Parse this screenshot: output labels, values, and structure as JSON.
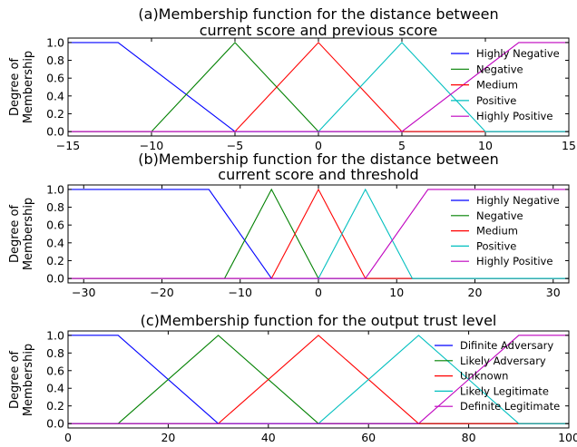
{
  "chart_data": [
    {
      "type": "line",
      "title": [
        "(a)Membership function for the distance between",
        "current score and previous score"
      ],
      "xlabel": "",
      "ylabel": [
        "Degree of",
        "Membership"
      ],
      "xlim": [
        -15,
        15
      ],
      "ylim": [
        -0.05,
        1.05
      ],
      "xticks": [
        -15,
        -10,
        -5,
        0,
        5,
        10,
        15
      ],
      "xtick_labels": [
        "−15",
        "−10",
        "−5",
        "0",
        "5",
        "10",
        "15"
      ],
      "yticks": [
        0.0,
        0.2,
        0.4,
        0.6,
        0.8,
        1.0
      ],
      "ytick_labels": [
        "0.0",
        "0.2",
        "0.4",
        "0.6",
        "0.8",
        "1.0"
      ],
      "grid": false,
      "legend_position": "right",
      "series": [
        {
          "name": "Highly Negative",
          "color": "#0000ff",
          "x": [
            -15,
            -12,
            -5,
            15
          ],
          "y": [
            1,
            1,
            0,
            0
          ]
        },
        {
          "name": "Negative",
          "color": "#008000",
          "x": [
            -15,
            -10,
            -5,
            0,
            15
          ],
          "y": [
            0,
            0,
            1,
            0,
            0
          ]
        },
        {
          "name": "Medium",
          "color": "#ff0000",
          "x": [
            -15,
            -5,
            0,
            5,
            15
          ],
          "y": [
            0,
            0,
            1,
            0,
            0
          ]
        },
        {
          "name": "Positive",
          "color": "#00bfbf",
          "x": [
            -15,
            0,
            5,
            10,
            15
          ],
          "y": [
            0,
            0,
            1,
            0,
            0
          ]
        },
        {
          "name": "Highly Positive",
          "color": "#bf00bf",
          "x": [
            -15,
            5,
            12,
            15
          ],
          "y": [
            0,
            0,
            1,
            1
          ]
        }
      ]
    },
    {
      "type": "line",
      "title": [
        "(b)Membership function for the distance between",
        "current score and threshold"
      ],
      "xlabel": "",
      "ylabel": [
        "Degree of",
        "Membership"
      ],
      "xlim": [
        -32,
        32
      ],
      "ylim": [
        -0.05,
        1.05
      ],
      "xticks": [
        -30,
        -20,
        -10,
        0,
        10,
        20,
        30
      ],
      "xtick_labels": [
        "−30",
        "−20",
        "−10",
        "0",
        "10",
        "20",
        "30"
      ],
      "yticks": [
        0.0,
        0.2,
        0.4,
        0.6,
        0.8,
        1.0
      ],
      "ytick_labels": [
        "0.0",
        "0.2",
        "0.4",
        "0.6",
        "0.8",
        "1.0"
      ],
      "grid": false,
      "legend_position": "right",
      "series": [
        {
          "name": "Highly Negative",
          "color": "#0000ff",
          "x": [
            -32,
            -14,
            -6,
            32
          ],
          "y": [
            1,
            1,
            0,
            0
          ]
        },
        {
          "name": "Negative",
          "color": "#008000",
          "x": [
            -32,
            -12,
            -6,
            0,
            32
          ],
          "y": [
            0,
            0,
            1,
            0,
            0
          ]
        },
        {
          "name": "Medium",
          "color": "#ff0000",
          "x": [
            -32,
            -6,
            0,
            6,
            32
          ],
          "y": [
            0,
            0,
            1,
            0,
            0
          ]
        },
        {
          "name": "Positive",
          "color": "#00bfbf",
          "x": [
            -32,
            0,
            6,
            12,
            32
          ],
          "y": [
            0,
            0,
            1,
            0,
            0
          ]
        },
        {
          "name": "Highly Positive",
          "color": "#bf00bf",
          "x": [
            -32,
            6,
            14,
            32
          ],
          "y": [
            0,
            0,
            1,
            1
          ]
        }
      ]
    },
    {
      "type": "line",
      "title": [
        "(c)Membership function for the output trust level"
      ],
      "xlabel": "",
      "ylabel": [
        "Degree of",
        "Membership"
      ],
      "xlim": [
        0,
        100
      ],
      "ylim": [
        -0.05,
        1.05
      ],
      "xticks": [
        0,
        20,
        40,
        60,
        80,
        100
      ],
      "xtick_labels": [
        "0",
        "20",
        "40",
        "60",
        "80",
        "100"
      ],
      "yticks": [
        0.0,
        0.2,
        0.4,
        0.6,
        0.8,
        1.0
      ],
      "ytick_labels": [
        "0.0",
        "0.2",
        "0.4",
        "0.6",
        "0.8",
        "1.0"
      ],
      "grid": false,
      "legend_position": "right",
      "series": [
        {
          "name": "Difinite Adversary",
          "color": "#0000ff",
          "x": [
            0,
            10,
            30,
            100
          ],
          "y": [
            1,
            1,
            0,
            0
          ]
        },
        {
          "name": "Likely Adversary",
          "color": "#008000",
          "x": [
            0,
            10,
            30,
            50,
            100
          ],
          "y": [
            0,
            0,
            1,
            0,
            0
          ]
        },
        {
          "name": "Unknown",
          "color": "#ff0000",
          "x": [
            0,
            30,
            50,
            70,
            100
          ],
          "y": [
            0,
            0,
            1,
            0,
            0
          ]
        },
        {
          "name": "Likely Legitimate",
          "color": "#00bfbf",
          "x": [
            0,
            50,
            70,
            90,
            100
          ],
          "y": [
            0,
            0,
            1,
            0,
            0
          ]
        },
        {
          "name": "Definite Legitimate",
          "color": "#bf00bf",
          "x": [
            0,
            70,
            90,
            100
          ],
          "y": [
            0,
            0,
            1,
            1
          ]
        }
      ]
    }
  ]
}
